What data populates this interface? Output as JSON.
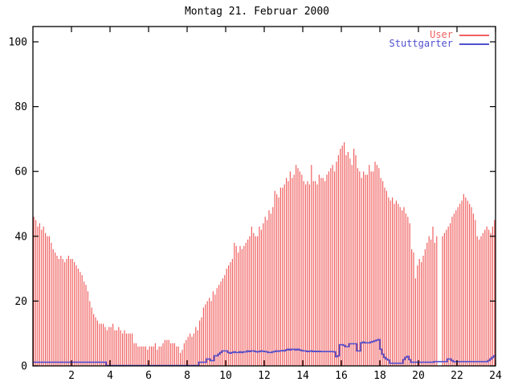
{
  "window": {
    "title": "Montag 21. Februar 2000"
  },
  "colors": {
    "background": "#ffffff",
    "axis": "#000000",
    "user_red": "#f06060",
    "stuttgarter_blue": "#5050d0"
  },
  "legend": {
    "position": "top-right",
    "entries": [
      {
        "label": "User",
        "color": "#f06060"
      },
      {
        "label": "Stuttgarter",
        "color": "#5050d0"
      }
    ]
  },
  "chart_data": {
    "type": "bar",
    "title": "Montag 21. Februar 2000",
    "xlabel": "",
    "ylabel": "",
    "x_start_hour": 0,
    "x_end_hour": 24,
    "samples_per_hour": 10,
    "xlim": [
      0,
      24
    ],
    "ylim": [
      0,
      105
    ],
    "xticks": [
      2,
      4,
      6,
      8,
      10,
      12,
      14,
      16,
      18,
      20,
      22,
      24
    ],
    "yticks": [
      0,
      20,
      40,
      60,
      80,
      100
    ],
    "grid": false,
    "legend_position": "top-right",
    "series": [
      {
        "name": "User",
        "style": "impulses",
        "color": "#f06060",
        "values": [
          46,
          45,
          43,
          44,
          42,
          43,
          41,
          40,
          40,
          38,
          36,
          35,
          34,
          33,
          34,
          33,
          32,
          33,
          34,
          33,
          33,
          32,
          31,
          30,
          29,
          28,
          26,
          25,
          23,
          20,
          18,
          16,
          15,
          14,
          13,
          13,
          13,
          12,
          11,
          12,
          12,
          13,
          11,
          11,
          12,
          11,
          10,
          11,
          10,
          10,
          10,
          10,
          7,
          7,
          6,
          6,
          6,
          6,
          6,
          5,
          6,
          6,
          6,
          7,
          5,
          6,
          6,
          7,
          8,
          8,
          8,
          7,
          7,
          7,
          6,
          6,
          4,
          5,
          7,
          8,
          9,
          10,
          9,
          10,
          12,
          11,
          14,
          15,
          18,
          19,
          20,
          21,
          20,
          23,
          22,
          24,
          25,
          26,
          27,
          28,
          30,
          31,
          32,
          33,
          38,
          37,
          35,
          37,
          36,
          37,
          38,
          39,
          40,
          43,
          41,
          40,
          40,
          43,
          42,
          44,
          46,
          45,
          48,
          47,
          49,
          54,
          53,
          52,
          55,
          55,
          56,
          58,
          57,
          60,
          58,
          59,
          62,
          61,
          60,
          59,
          57,
          56,
          57,
          56,
          62,
          57,
          57,
          56,
          59,
          58,
          58,
          57,
          59,
          60,
          61,
          62,
          60,
          63,
          65,
          67,
          68,
          69,
          65,
          66,
          64,
          62,
          67,
          65,
          61,
          60,
          58,
          60,
          59,
          59,
          62,
          60,
          60,
          63,
          62,
          61,
          58,
          57,
          55,
          54,
          52,
          51,
          52,
          50,
          51,
          50,
          49,
          48,
          49,
          47,
          46,
          44,
          36,
          35,
          27,
          31,
          33,
          32,
          34,
          36,
          38,
          40,
          39,
          43,
          38,
          40,
          0,
          0,
          40,
          41,
          42,
          43,
          44,
          46,
          47,
          48,
          49,
          50,
          51,
          53,
          52,
          51,
          50,
          49,
          47,
          45,
          40,
          39,
          40,
          41,
          42,
          43,
          42,
          41,
          43,
          45
        ]
      },
      {
        "name": "Stuttgarter",
        "style": "step-line",
        "color": "#5050d0",
        "values": [
          1,
          1,
          1,
          1,
          1,
          1,
          1,
          1,
          1,
          1,
          1,
          1,
          1,
          1,
          1,
          1,
          1,
          1,
          1,
          1,
          1,
          1,
          1,
          1,
          1,
          1,
          1,
          1,
          1,
          1,
          1,
          1,
          1,
          1,
          1,
          1,
          1,
          1,
          0,
          0,
          0,
          0,
          0,
          0,
          0,
          0,
          0,
          0,
          0,
          0,
          0,
          0,
          0,
          0,
          0,
          0,
          0,
          0,
          0,
          0,
          0,
          0,
          0,
          0,
          0,
          0,
          0,
          0,
          0,
          0,
          0,
          0,
          0,
          0,
          0,
          0,
          0,
          0,
          0,
          0,
          0,
          0,
          0,
          0,
          0,
          0,
          1,
          1,
          1,
          1,
          2,
          2,
          1.5,
          1.5,
          3,
          3,
          3.5,
          4,
          4.5,
          4.5,
          4.5,
          4,
          3.8,
          4,
          4.2,
          4,
          4,
          4.2,
          4,
          4.2,
          4.2,
          4.5,
          4.3,
          4.5,
          4.5,
          4.3,
          4.2,
          4.3,
          4.5,
          4.4,
          4.3,
          4.2,
          4,
          4,
          4.2,
          4.3,
          4.5,
          4.4,
          4.5,
          4.6,
          4.5,
          4.8,
          5,
          4.8,
          5,
          5,
          4.8,
          5,
          4.8,
          4.6,
          4.5,
          4.5,
          4.3,
          4.4,
          4.5,
          4.3,
          4.4,
          4.3,
          4.4,
          4.3,
          4.3,
          4.3,
          4.3,
          4.3,
          4.3,
          4.3,
          4.2,
          2.7,
          3,
          6.4,
          6.4,
          6.2,
          5.8,
          5.8,
          6.7,
          6.7,
          6.7,
          6.7,
          4.5,
          4.5,
          7,
          7.2,
          7,
          7,
          7,
          7.2,
          7.4,
          7.6,
          7.8,
          8,
          5,
          3.5,
          2.5,
          2,
          1.7,
          0.7,
          0.7,
          0.7,
          0.7,
          0.7,
          0.7,
          0.7,
          1.8,
          2.5,
          2.8,
          1.8,
          1,
          1,
          1,
          1,
          1,
          1,
          1,
          1,
          1,
          1,
          1,
          1,
          1.2,
          1.2,
          1.2,
          1.2,
          1.2,
          1.2,
          1.2,
          2,
          2,
          1.5,
          1.2,
          1.2,
          1.2,
          1.2,
          1.2,
          1.2,
          1.2,
          1.2,
          1.2,
          1.2,
          1.2,
          1.2,
          1.2,
          1.2,
          1.2,
          1.2,
          1.2,
          1.2,
          1.5,
          2,
          2.5,
          3
        ]
      }
    ]
  }
}
